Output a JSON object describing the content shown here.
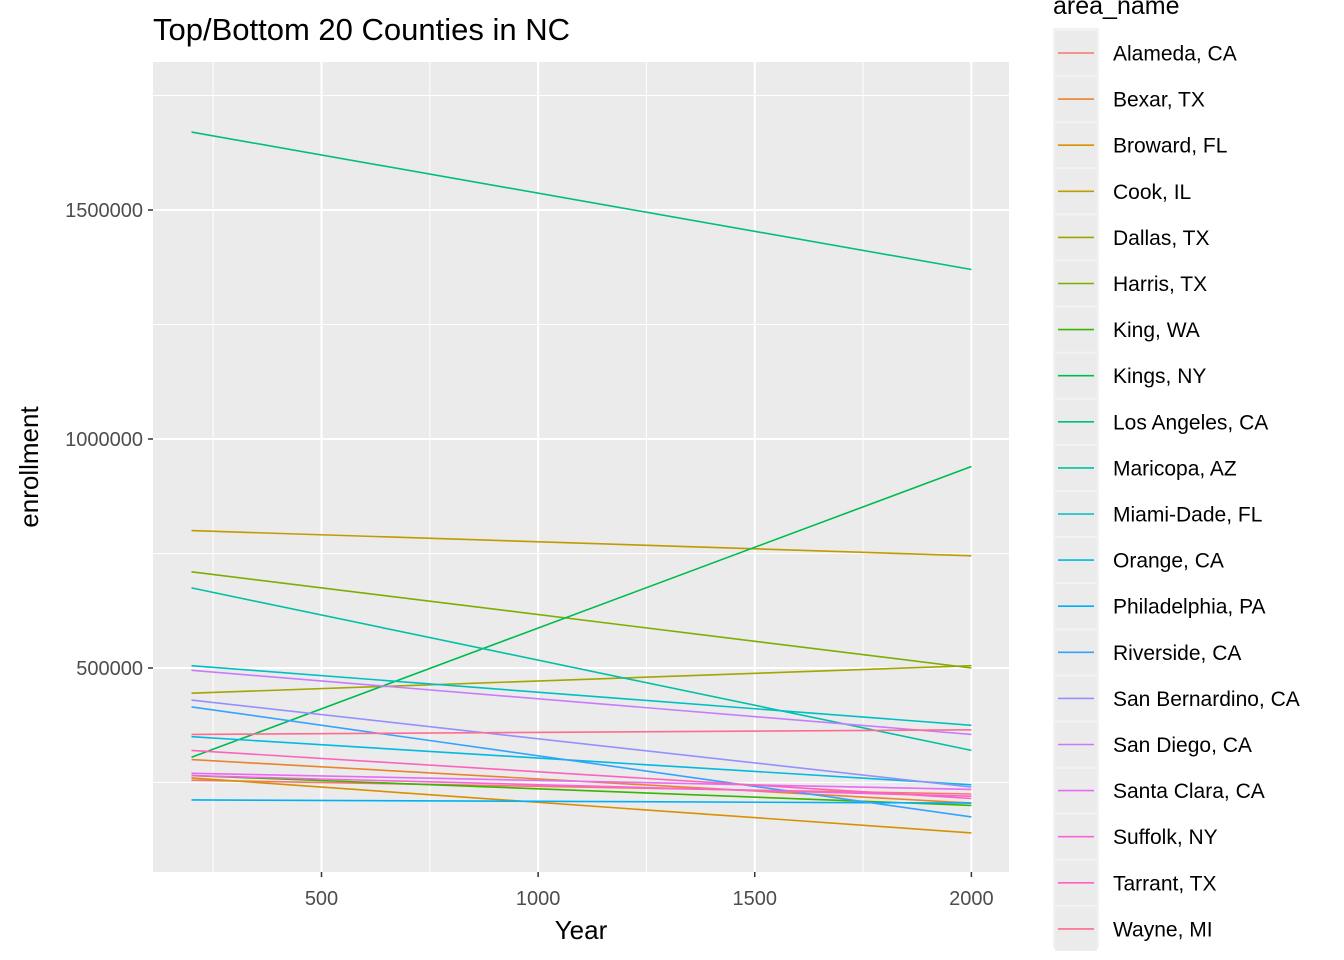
{
  "chart_data": {
    "type": "line",
    "title": "Top/Bottom 20 Counties in NC",
    "xlabel": "Year",
    "ylabel": "enrollment",
    "xlim": [
      200,
      2000
    ],
    "ylim": [
      130000,
      1750000
    ],
    "x_ticks": [
      500,
      1000,
      1500,
      2000
    ],
    "x_tick_labels": [
      "500",
      "1000",
      "1500",
      "2000"
    ],
    "y_ticks": [
      500000,
      1000000,
      1500000
    ],
    "y_tick_labels": [
      "500000",
      "1000000",
      "1500000"
    ],
    "grid": true,
    "legend": {
      "title": "area_name",
      "position": "right"
    },
    "series": [
      {
        "name": "Alameda, CA",
        "color": "#F8766D",
        "x": [
          200,
          2000
        ],
        "y": [
          255000,
          225000
        ]
      },
      {
        "name": "Bexar, TX",
        "color": "#EA8331",
        "x": [
          200,
          2000
        ],
        "y": [
          300000,
          205000
        ]
      },
      {
        "name": "Broward, FL",
        "color": "#D89000",
        "x": [
          200,
          2000
        ],
        "y": [
          260000,
          140000
        ]
      },
      {
        "name": "Cook, IL",
        "color": "#C09B00",
        "x": [
          200,
          2000
        ],
        "y": [
          800000,
          745000
        ]
      },
      {
        "name": "Dallas, TX",
        "color": "#A3A500",
        "x": [
          200,
          2000
        ],
        "y": [
          445000,
          505000
        ]
      },
      {
        "name": "Harris, TX",
        "color": "#7CAE00",
        "x": [
          200,
          2000
        ],
        "y": [
          710000,
          500000
        ]
      },
      {
        "name": "King, WA",
        "color": "#39B600",
        "x": [
          200,
          2000
        ],
        "y": [
          265000,
          200000
        ]
      },
      {
        "name": "Kings, NY",
        "color": "#00BB4E",
        "x": [
          200,
          2000
        ],
        "y": [
          305000,
          940000
        ]
      },
      {
        "name": "Los Angeles, CA",
        "color": "#00BF7D",
        "x": [
          200,
          2000
        ],
        "y": [
          1670000,
          1370000
        ]
      },
      {
        "name": "Maricopa, AZ",
        "color": "#00C1A3",
        "x": [
          200,
          2000
        ],
        "y": [
          675000,
          320000
        ]
      },
      {
        "name": "Miami-Dade, FL",
        "color": "#00BFC4",
        "x": [
          200,
          2000
        ],
        "y": [
          505000,
          375000
        ]
      },
      {
        "name": "Orange, CA",
        "color": "#00BAE0",
        "x": [
          200,
          2000
        ],
        "y": [
          350000,
          245000
        ]
      },
      {
        "name": "Philadelphia, PA",
        "color": "#00B0F6",
        "x": [
          200,
          2000
        ],
        "y": [
          212000,
          205000
        ]
      },
      {
        "name": "Riverside, CA",
        "color": "#35A2FF",
        "x": [
          200,
          2000
        ],
        "y": [
          415000,
          175000
        ]
      },
      {
        "name": "San Bernardino, CA",
        "color": "#9590FF",
        "x": [
          200,
          2000
        ],
        "y": [
          430000,
          240000
        ]
      },
      {
        "name": "San Diego, CA",
        "color": "#C77CFF",
        "x": [
          200,
          2000
        ],
        "y": [
          495000,
          355000
        ]
      },
      {
        "name": "Santa Clara, CA",
        "color": "#E76BF3",
        "x": [
          200,
          2000
        ],
        "y": [
          270000,
          235000
        ]
      },
      {
        "name": "Suffolk, NY",
        "color": "#FA62DB",
        "x": [
          200,
          2000
        ],
        "y": [
          265000,
          220000
        ]
      },
      {
        "name": "Tarrant, TX",
        "color": "#FF62BC",
        "x": [
          200,
          2000
        ],
        "y": [
          320000,
          215000
        ]
      },
      {
        "name": "Wayne, MI",
        "color": "#FF6C91",
        "x": [
          200,
          2000
        ],
        "y": [
          355000,
          365000
        ]
      }
    ]
  }
}
